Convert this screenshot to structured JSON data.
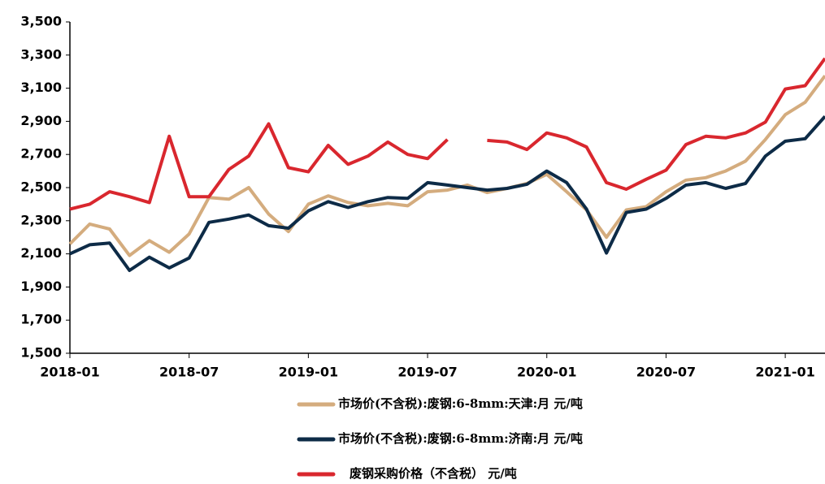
{
  "chart_data": {
    "type": "line",
    "x": [
      "2018-01",
      "2018-02",
      "2018-03",
      "2018-04",
      "2018-05",
      "2018-06",
      "2018-07",
      "2018-08",
      "2018-09",
      "2018-10",
      "2018-11",
      "2018-12",
      "2019-01",
      "2019-02",
      "2019-03",
      "2019-04",
      "2019-05",
      "2019-06",
      "2019-07",
      "2019-08",
      "2019-09",
      "2019-10",
      "2019-11",
      "2019-12",
      "2020-01",
      "2020-02",
      "2020-03",
      "2020-04",
      "2020-05",
      "2020-06",
      "2020-07",
      "2020-08",
      "2020-09",
      "2020-10",
      "2020-11",
      "2020-12",
      "2021-01",
      "2021-02",
      "2021-03"
    ],
    "xticks": [
      "2018-01",
      "2018-07",
      "2019-01",
      "2019-07",
      "2020-01",
      "2020-07",
      "2021-01"
    ],
    "ylim": [
      1500,
      3500
    ],
    "yticks": [
      {
        "value": 1500,
        "label": "1,500"
      },
      {
        "value": 1700,
        "label": "1,700"
      },
      {
        "value": 1900,
        "label": "1,900"
      },
      {
        "value": 2100,
        "label": "2,100"
      },
      {
        "value": 2300,
        "label": "2,300"
      },
      {
        "value": 2500,
        "label": "2,500"
      },
      {
        "value": 2700,
        "label": "2,700"
      },
      {
        "value": 2900,
        "label": "2,900"
      },
      {
        "value": 3100,
        "label": "3,100"
      },
      {
        "value": 3300,
        "label": "3,300"
      },
      {
        "value": 3500,
        "label": "3,500"
      }
    ],
    "series": [
      {
        "name": "市场价(不含税):废钢:6-8mm:天津:月  元/吨",
        "color": "#d4ac7e",
        "values": [
          2160,
          2280,
          2250,
          2090,
          2180,
          2110,
          2220,
          2440,
          2430,
          2500,
          2340,
          2235,
          2400,
          2450,
          2410,
          2390,
          2405,
          2390,
          2475,
          2485,
          2515,
          2470,
          2495,
          2525,
          2580,
          2475,
          2365,
          2200,
          2365,
          2385,
          2475,
          2545,
          2560,
          2600,
          2660,
          2790,
          2940,
          3015,
          3175
        ]
      },
      {
        "name": "市场价(不含税):废钢:6-8mm:济南:月  元/吨",
        "color": "#0d2b47",
        "values": [
          2100,
          2155,
          2165,
          2000,
          2080,
          2015,
          2075,
          2290,
          2310,
          2335,
          2270,
          2255,
          2360,
          2415,
          2380,
          2415,
          2440,
          2435,
          2530,
          2515,
          2500,
          2485,
          2495,
          2520,
          2600,
          2530,
          2370,
          2105,
          2350,
          2370,
          2435,
          2515,
          2530,
          2495,
          2525,
          2690,
          2780,
          2795,
          2930
        ]
      },
      {
        "name": "废钢采购价格（不含税）     元/吨",
        "color": "#d9272e",
        "values": [
          2370,
          2400,
          2475,
          2445,
          2410,
          2810,
          2445,
          2445,
          2610,
          2690,
          2885,
          2620,
          2595,
          2755,
          2640,
          2690,
          2775,
          2700,
          2675,
          2790,
          null,
          2785,
          2775,
          2730,
          2830,
          2800,
          2745,
          2530,
          2490,
          2550,
          2605,
          2760,
          2810,
          2800,
          2830,
          2895,
          3095,
          3115,
          3280
        ]
      }
    ]
  }
}
